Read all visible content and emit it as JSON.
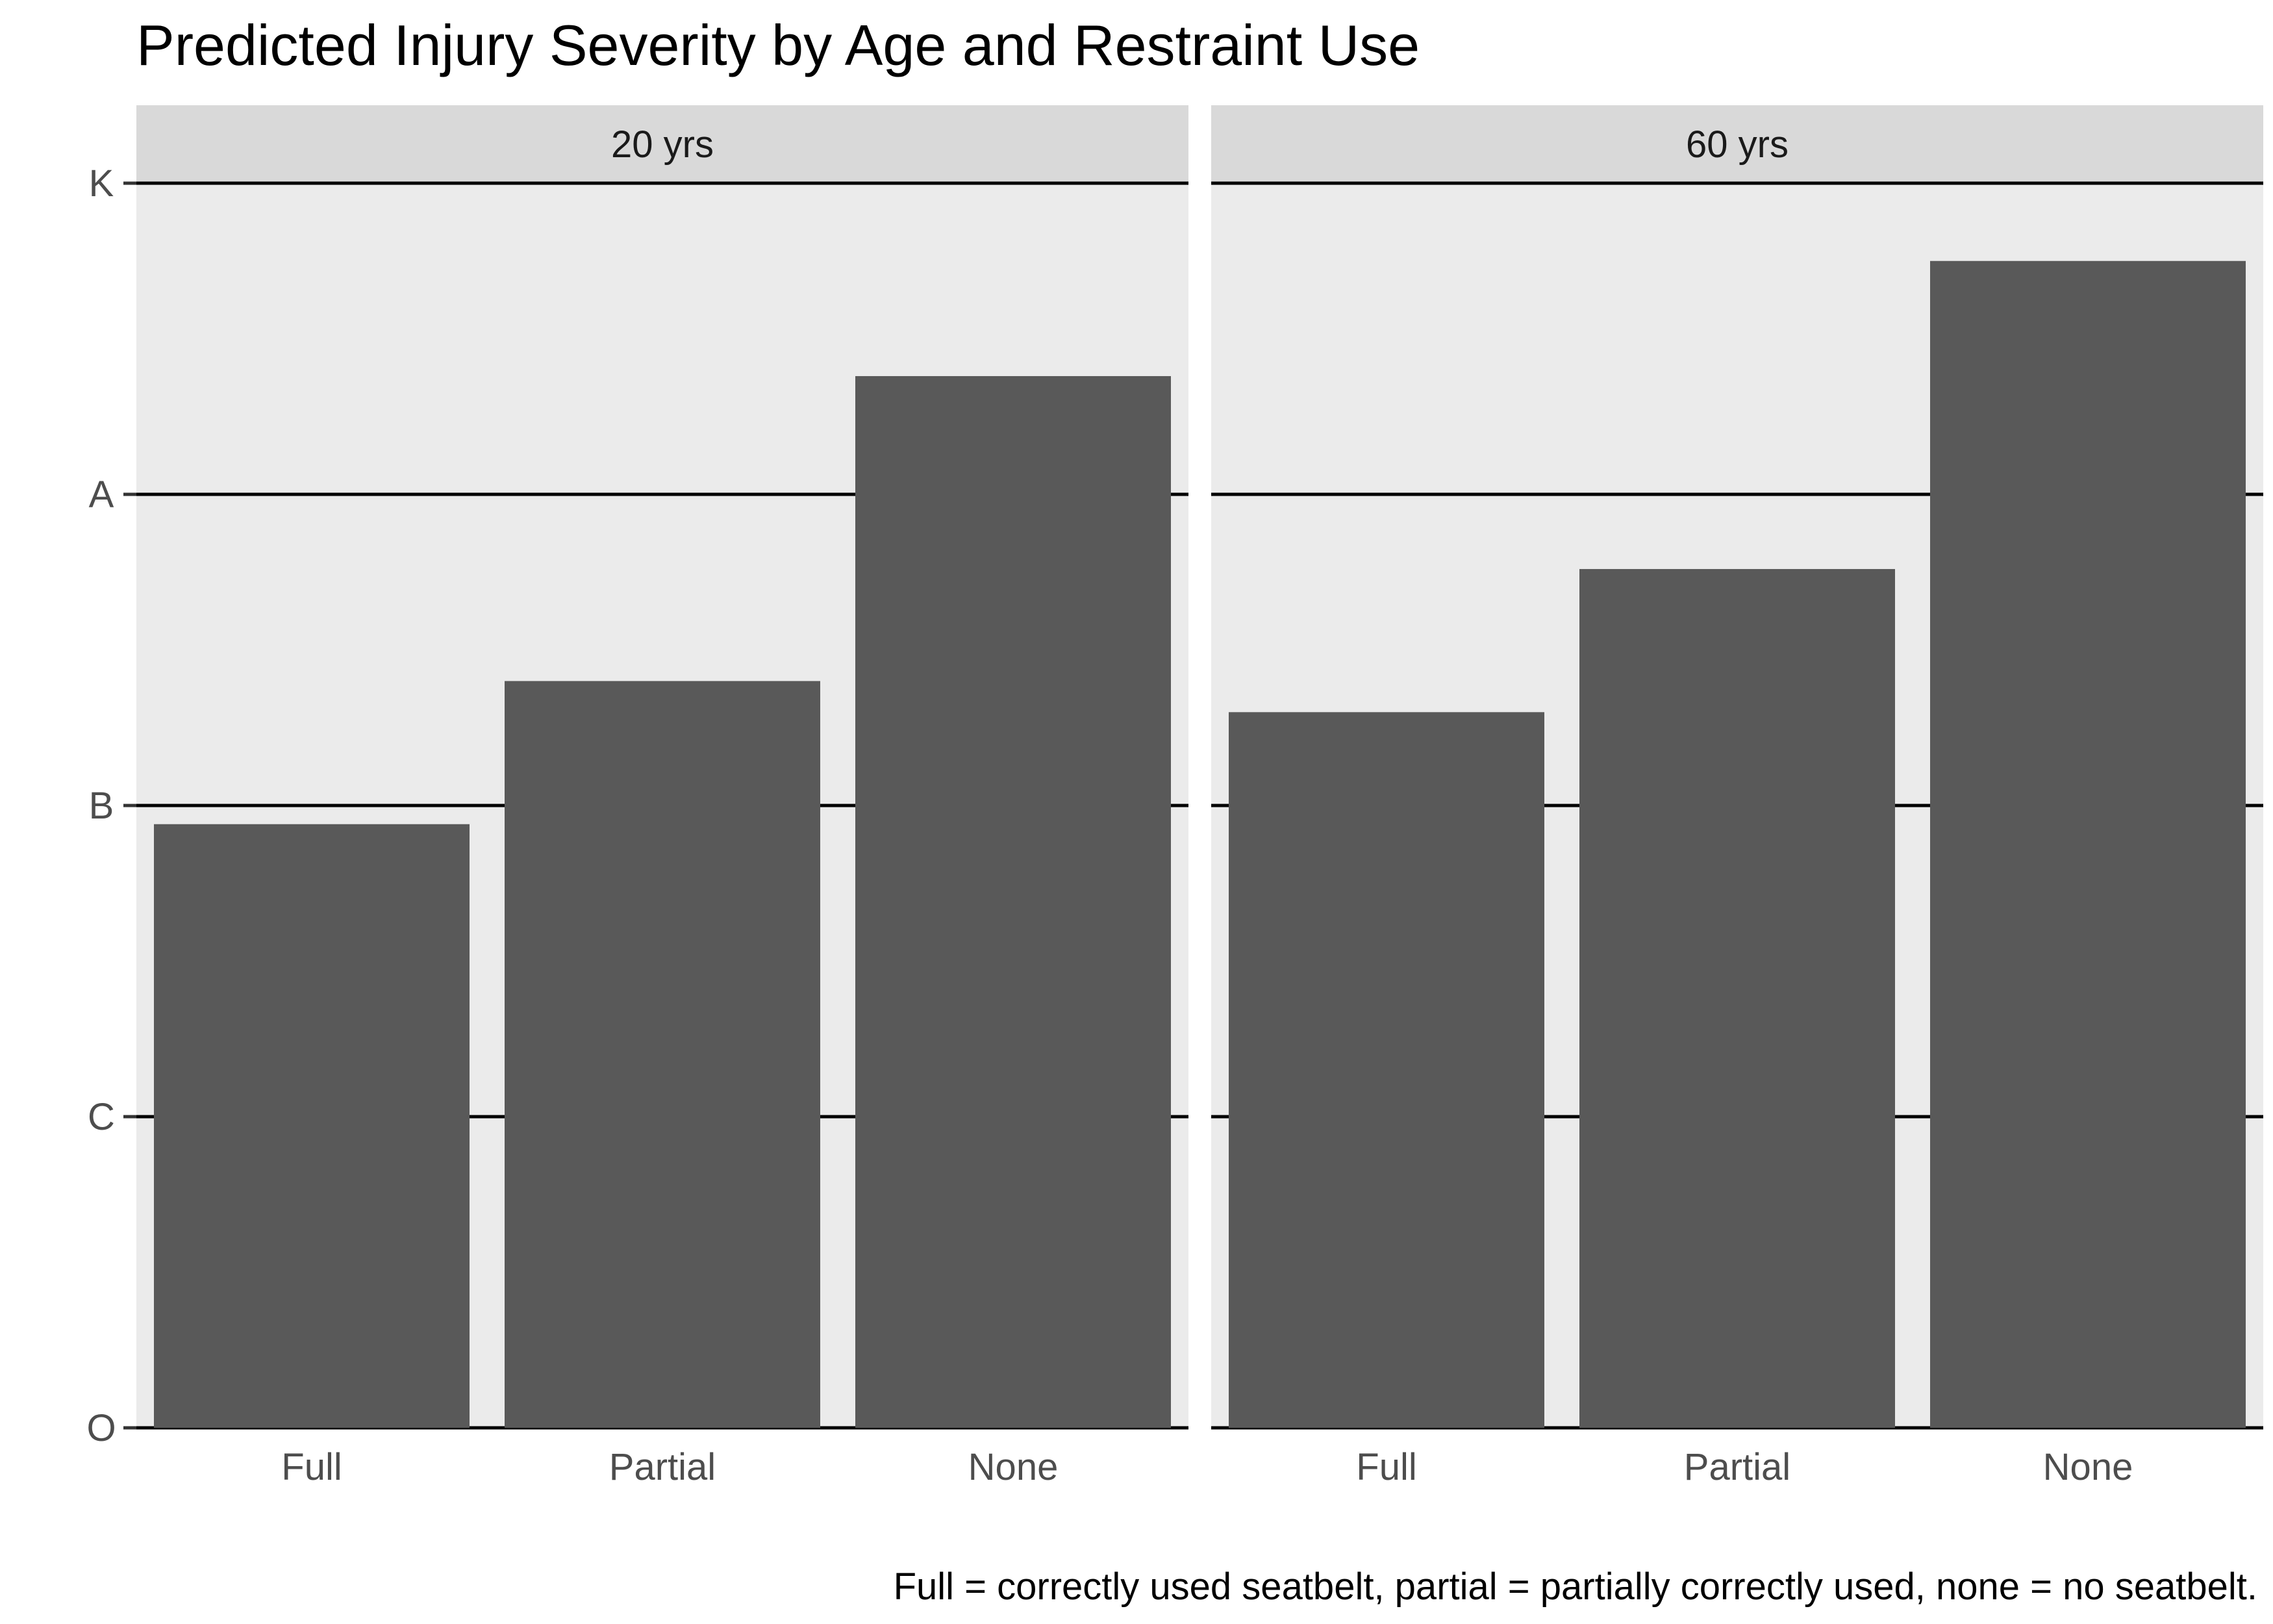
{
  "chart_data": {
    "type": "bar",
    "title": "Predicted Injury Severity by Age and Restraint Use",
    "caption": "Full = correctly used seatbelt, partial = partially correctly used, none = no seatbelt.",
    "xlabel": "",
    "ylabel": "",
    "categories": [
      "Full",
      "Partial",
      "None"
    ],
    "y_ticks": [
      "O",
      "C",
      "B",
      "A",
      "K"
    ],
    "ylim": [
      0,
      4
    ],
    "grid": "horizontal major lines",
    "colors": {
      "bar": "#595959",
      "panel_background": "#ebebeb",
      "strip_background": "#d9d9d9",
      "grid_line": "#000000"
    },
    "panels": [
      {
        "label": "20 yrs",
        "values": [
          1.94,
          2.4,
          3.38
        ]
      },
      {
        "label": "60 yrs",
        "values": [
          2.3,
          2.76,
          3.75
        ]
      }
    ]
  }
}
